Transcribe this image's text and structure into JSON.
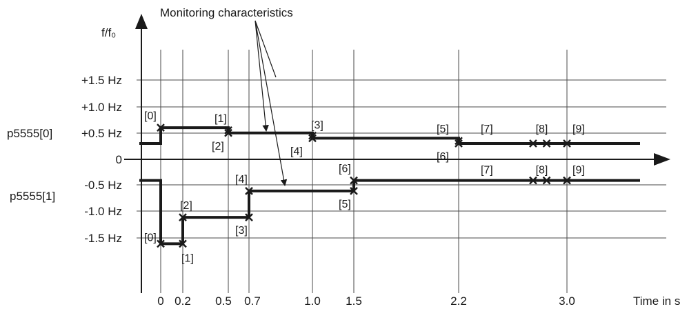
{
  "title": "Monitoring characteristics",
  "y_axis_label": "f/f₀",
  "x_axis_label": "Time in s",
  "y_ticks": [
    "+1.5 Hz",
    "+1.0 Hz",
    "+0.5 Hz",
    "0",
    "-0.5 Hz",
    "-1.0 Hz",
    "-1.5 Hz"
  ],
  "param_labels": [
    "p5555[0]",
    "p5555[1]"
  ],
  "x_ticks": [
    "0",
    "0.2",
    "0.5",
    "0.7",
    "1.0",
    "1.5",
    "2.2",
    "3.0"
  ],
  "chart_data": {
    "type": "line",
    "title": "Monitoring characteristics",
    "xlabel": "Time in s",
    "ylabel": "f/f₀",
    "y_unit": "Hz",
    "x_tick_values": [
      0,
      0.2,
      0.5,
      0.7,
      1.0,
      1.5,
      2.2,
      3.0
    ],
    "y_tick_values": [
      1.5,
      1.0,
      0.5,
      0,
      -0.5,
      -1.0,
      -1.5
    ],
    "series": [
      {
        "name": "p5555[0]",
        "steps": [
          {
            "t": -0.15,
            "f": 0.3
          },
          {
            "t": 0.0,
            "f": 0.6
          },
          {
            "t": 0.5,
            "f": 0.5
          },
          {
            "t": 1.0,
            "f": 0.4
          },
          {
            "t": 2.2,
            "f": 0.3
          },
          {
            "t": 3.5,
            "f": 0.3
          }
        ],
        "points": [
          {
            "label": "[0]",
            "t": 0.0,
            "f": 0.6
          },
          {
            "label": "[1]",
            "t": 0.5,
            "f": 0.55
          },
          {
            "label": "[2]",
            "t": 0.5,
            "f": 0.5
          },
          {
            "label": "[3]",
            "t": 1.0,
            "f": 0.45
          },
          {
            "label": "[4]",
            "t": 1.0,
            "f": 0.4
          },
          {
            "label": "[5]",
            "t": 2.2,
            "f": 0.35
          },
          {
            "label": "[6]",
            "t": 2.2,
            "f": 0.3
          },
          {
            "label": "[7]",
            "t": 2.75,
            "f": 0.3
          },
          {
            "label": "[8]",
            "t": 2.85,
            "f": 0.3
          },
          {
            "label": "[9]",
            "t": 3.0,
            "f": 0.3
          }
        ]
      },
      {
        "name": "p5555[1]",
        "steps": [
          {
            "t": -0.15,
            "f": -0.4
          },
          {
            "t": 0.0,
            "f": -1.6
          },
          {
            "t": 0.2,
            "f": -1.1
          },
          {
            "t": 0.7,
            "f": -0.6
          },
          {
            "t": 1.5,
            "f": -0.4
          },
          {
            "t": 3.5,
            "f": -0.4
          }
        ],
        "points": [
          {
            "label": "[0]",
            "t": 0.0,
            "f": -1.6
          },
          {
            "label": "[1]",
            "t": 0.2,
            "f": -1.6
          },
          {
            "label": "[2]",
            "t": 0.2,
            "f": -1.1
          },
          {
            "label": "[3]",
            "t": 0.7,
            "f": -1.1
          },
          {
            "label": "[4]",
            "t": 0.7,
            "f": -0.6
          },
          {
            "label": "[5]",
            "t": 1.5,
            "f": -0.6
          },
          {
            "label": "[6]",
            "t": 1.5,
            "f": -0.4
          },
          {
            "label": "[7]",
            "t": 2.75,
            "f": -0.4
          },
          {
            "label": "[8]",
            "t": 2.85,
            "f": -0.4
          },
          {
            "label": "[9]",
            "t": 3.0,
            "f": -0.4
          }
        ]
      }
    ]
  }
}
